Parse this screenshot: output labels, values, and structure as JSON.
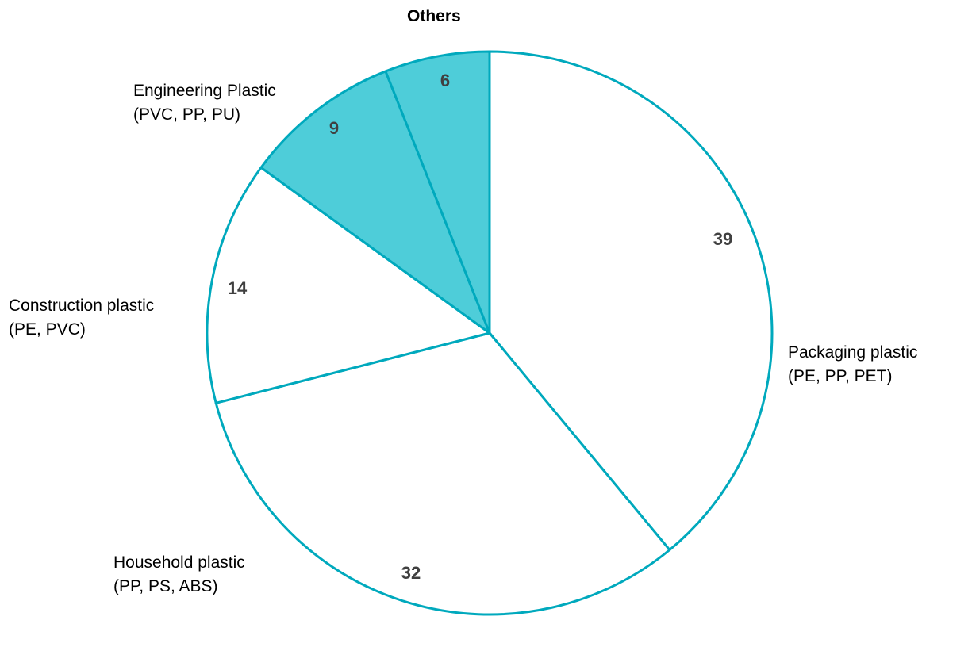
{
  "chart_data": {
    "type": "pie",
    "title": "",
    "start_angle": "12 o'clock",
    "direction": "clockwise",
    "slices": [
      {
        "label": "Packaging plastic",
        "sublabel": "(PE, PP, PET)",
        "value": 39,
        "fill": "#ffffff"
      },
      {
        "label": "Household plastic",
        "sublabel": "(PP, PS, ABS)",
        "value": 32,
        "fill": "#ffffff"
      },
      {
        "label": "Construction plastic",
        "sublabel": "(PE, PVC)",
        "value": 14,
        "fill": "#ffffff"
      },
      {
        "label": "Engineering Plastic",
        "sublabel": "(PVC, PP, PU)",
        "value": 9,
        "fill": "#4ecdd9"
      },
      {
        "label": "Others",
        "sublabel": "",
        "value": 6,
        "fill": "#4ecdd9"
      }
    ],
    "categories": [
      "Packaging plastic (PE, PP, PET)",
      "Household plastic (PP, PS, ABS)",
      "Construction plastic (PE, PVC)",
      "Engineering Plastic (PVC, PP, PU)",
      "Others"
    ],
    "values": [
      39,
      32,
      14,
      9,
      6
    ],
    "stroke_color": "#00a9bd",
    "legend": "none (direct labels)"
  },
  "labels": {
    "packaging": {
      "line1": "Packaging plastic",
      "line2": "(PE, PP, PET)",
      "value": "39"
    },
    "household": {
      "line1": "Household plastic",
      "line2": "(PP, PS, ABS)",
      "value": "32"
    },
    "construction": {
      "line1": "Construction plastic",
      "line2": "(PE, PVC)",
      "value": "14"
    },
    "engineering": {
      "line1": "Engineering Plastic",
      "line2": "(PVC, PP, PU)",
      "value": "9"
    },
    "others": {
      "line1": "Others",
      "value": "6"
    }
  }
}
